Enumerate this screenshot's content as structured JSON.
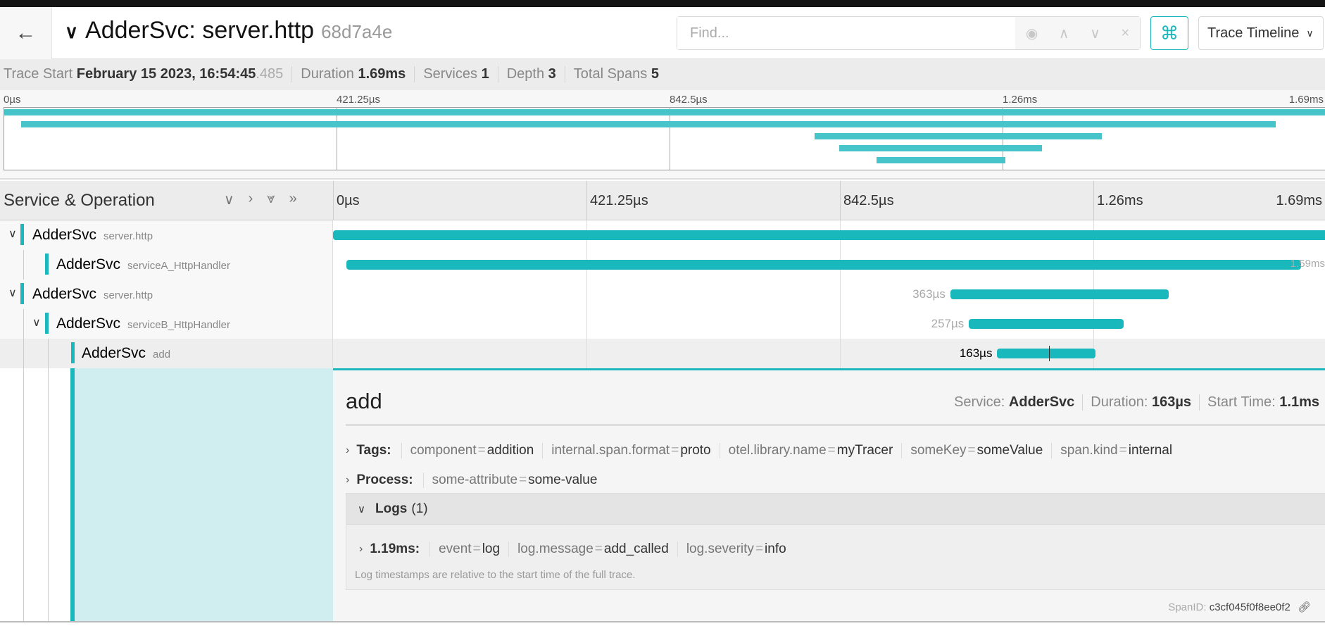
{
  "header": {
    "back_icon": "arrow-left-icon",
    "title": "AdderSvc: server.http",
    "trace_id": "68d7a4e",
    "find_placeholder": "Find...",
    "find_buttons": [
      "◉",
      "∧",
      "∨",
      "×"
    ],
    "shortcut_icon": "⌘",
    "view_select": "Trace Timeline"
  },
  "summary": {
    "trace_start_label": "Trace Start",
    "trace_start": "February 15 2023, 16:54:45",
    "trace_start_ms": ".485",
    "duration_label": "Duration",
    "duration": "1.69ms",
    "services_label": "Services",
    "services": "1",
    "depth_label": "Depth",
    "depth": "3",
    "total_spans_label": "Total Spans",
    "total_spans": "5"
  },
  "ticks": [
    "0µs",
    "421.25µs",
    "842.5µs",
    "1.26ms",
    "1.69ms"
  ],
  "timeline": {
    "column_title": "Service & Operation",
    "controls": [
      "∨",
      "›",
      "⩔",
      "»"
    ],
    "spans": [
      {
        "service": "AdderSvc",
        "operation": "server.http",
        "depth": 0,
        "collapsible": true,
        "start_us": 0,
        "duration_us": 1685,
        "label": ""
      },
      {
        "service": "AdderSvc",
        "operation": "serviceA_HttpHandler",
        "depth": 1,
        "collapsible": false,
        "start_us": 22,
        "duration_us": 1587,
        "label": "1.59ms"
      },
      {
        "service": "AdderSvc",
        "operation": "server.http",
        "depth": 0,
        "collapsible": true,
        "start_us": 1026,
        "duration_us": 363,
        "label": "363µs"
      },
      {
        "service": "AdderSvc",
        "operation": "serviceB_HttpHandler",
        "depth": 1,
        "collapsible": true,
        "start_us": 1057,
        "duration_us": 257,
        "label": "257µs"
      },
      {
        "service": "AdderSvc",
        "operation": "add",
        "depth": 2,
        "collapsible": false,
        "start_us": 1104,
        "duration_us": 163,
        "label": "163µs",
        "selected": true,
        "log_us": 1190
      }
    ]
  },
  "detail": {
    "name": "add",
    "service_label": "Service:",
    "service": "AdderSvc",
    "duration_label": "Duration:",
    "duration": "163µs",
    "start_label": "Start Time:",
    "start": "1.1ms",
    "tags_label": "Tags:",
    "tags": [
      {
        "key": "component",
        "value": "addition"
      },
      {
        "key": "internal.span.format",
        "value": "proto"
      },
      {
        "key": "otel.library.name",
        "value": "myTracer"
      },
      {
        "key": "someKey",
        "value": "someValue"
      },
      {
        "key": "span.kind",
        "value": "internal"
      }
    ],
    "process_label": "Process:",
    "process": [
      {
        "key": "some-attribute",
        "value": "some-value"
      }
    ],
    "logs_label": "Logs",
    "logs_count": "(1)",
    "log": {
      "time": "1.19ms:",
      "fields": [
        {
          "key": "event",
          "value": "log"
        },
        {
          "key": "log.message",
          "value": "add_called"
        },
        {
          "key": "log.severity",
          "value": "info"
        }
      ]
    },
    "logs_note": "Log timestamps are relative to the start time of the full trace.",
    "span_id_label": "SpanID:",
    "span_id": "c3cf045f0f8ee0f2"
  },
  "colors": {
    "accent": "#1ab7bd",
    "minimap_bar": "#47c4ca",
    "selected_bg": "#d0eef0"
  }
}
